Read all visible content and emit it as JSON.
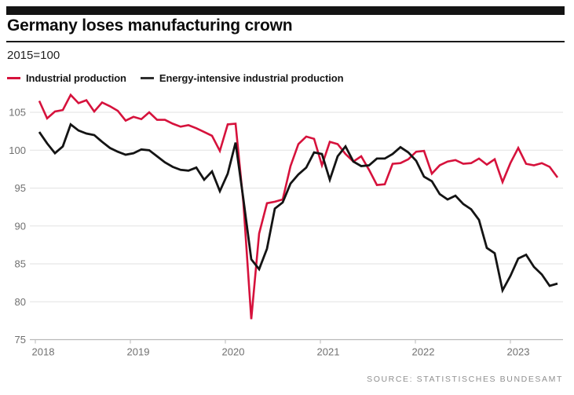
{
  "header": {
    "title": "Germany loses manufacturing crown",
    "subtitle": "2015=100"
  },
  "legend": {
    "items": [
      {
        "label": "Industrial production",
        "color": "#d6123c"
      },
      {
        "label": "Energy-intensive industrial production",
        "color": "#2e2e2e"
      }
    ]
  },
  "source": "SOURCE: STATISTISCHES BUNDESAMT",
  "colors": {
    "accent_red": "#d6123c",
    "line_black": "#141414",
    "grid": "#e2e2e2",
    "axis_text": "#707070"
  },
  "chart_data": {
    "type": "line",
    "title": "Germany loses manufacturing crown",
    "subtitle": "2015=100",
    "x_unit": "month",
    "x_start": "2018-01",
    "x_end": "2023-07",
    "x_tick_labels": [
      "2018",
      "2019",
      "2020",
      "2021",
      "2022",
      "2023"
    ],
    "y_ticks": [
      105,
      100,
      95,
      90,
      85,
      80,
      75
    ],
    "ylim": [
      75,
      107.5
    ],
    "grid": true,
    "legend_position": "top",
    "series": [
      {
        "name": "Industrial production",
        "color": "#d6123c",
        "values": [
          106.5,
          104.2,
          105.1,
          105.3,
          107.3,
          106.2,
          106.6,
          105.1,
          106.3,
          105.8,
          105.2,
          103.9,
          104.4,
          104.1,
          105.0,
          104.0,
          104.0,
          103.5,
          103.1,
          103.3,
          102.9,
          102.4,
          101.9,
          99.9,
          103.4,
          103.5,
          93.0,
          77.7,
          89.0,
          93.0,
          93.2,
          93.5,
          97.9,
          100.8,
          101.8,
          101.5,
          98.0,
          101.1,
          100.8,
          99.5,
          98.5,
          99.2,
          97.4,
          95.4,
          95.5,
          98.2,
          98.3,
          98.8,
          99.8,
          99.9,
          96.9,
          98.0,
          98.5,
          98.7,
          98.2,
          98.3,
          98.9,
          98.1,
          98.8,
          95.8,
          98.3,
          100.3,
          98.2,
          98.0,
          98.3,
          97.8,
          96.4
        ]
      },
      {
        "name": "Energy-intensive industrial production",
        "color": "#141414",
        "values": [
          102.4,
          100.9,
          99.6,
          100.5,
          103.4,
          102.6,
          102.2,
          102.0,
          101.1,
          100.3,
          99.8,
          99.4,
          99.6,
          100.1,
          100.0,
          99.2,
          98.4,
          97.8,
          97.4,
          97.3,
          97.7,
          96.1,
          97.2,
          94.6,
          96.9,
          101.0,
          93.5,
          85.6,
          84.3,
          87.0,
          92.3,
          93.1,
          95.6,
          96.8,
          97.7,
          99.7,
          99.5,
          96.1,
          99.2,
          100.5,
          98.5,
          97.9,
          98.0,
          98.9,
          98.9,
          99.5,
          100.4,
          99.7,
          98.6,
          96.5,
          95.9,
          94.2,
          93.5,
          94.0,
          92.9,
          92.2,
          90.8,
          87.1,
          86.4,
          81.5,
          83.4,
          85.7,
          86.2,
          84.6,
          83.6,
          82.1,
          82.4
        ]
      }
    ]
  }
}
